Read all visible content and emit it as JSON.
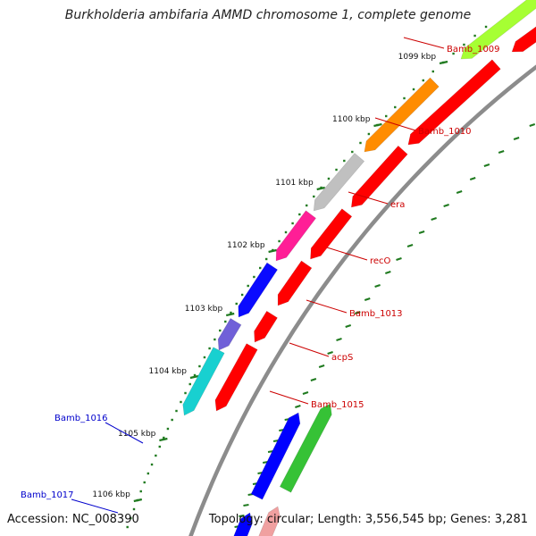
{
  "title": "Burkholderia ambifaria AMMD chromosome 1, complete genome",
  "footer": {
    "accession": "Accession: NC_008390",
    "topology": "Topology: circular; Length: 3,556,545 bp; Genes: 3,281"
  },
  "ticks": [
    "1099 kbp",
    "1100 kbp",
    "1101 kbp",
    "1102 kbp",
    "1103 kbp",
    "1104 kbp",
    "1105 kbp",
    "1106 kbp"
  ],
  "colors": {
    "backbone": "#8c8c8c",
    "tick": "#1f7a1f",
    "label_forward": "#cc0000",
    "label_reverse": "#0000cc",
    "cds": "#ff0000"
  },
  "genes": [
    {
      "name": "Bamb_1009",
      "color": "#a6ff33",
      "strand": "forward",
      "label": true
    },
    {
      "name": "Bamb_1010",
      "color": "#ff8c00",
      "strand": "forward",
      "label": true
    },
    {
      "name": "era",
      "color": "#c0c0c0",
      "strand": "forward",
      "label": true
    },
    {
      "name": "recO",
      "color": "#ff1e96",
      "strand": "forward",
      "label": true
    },
    {
      "name": "Bamb_1013",
      "color": "#0a0aff",
      "strand": "forward",
      "label": true
    },
    {
      "name": "acpS",
      "color": "#7060d8",
      "strand": "forward",
      "label": true
    },
    {
      "name": "Bamb_1015",
      "color": "#18d0d0",
      "strand": "forward",
      "label": true
    },
    {
      "name": "Bamb_1016",
      "color": "#36c236",
      "strand": "reverse",
      "label": true
    },
    {
      "name": "Bamb_1016 blue",
      "color": "#0000ff",
      "strand": "reverse",
      "label": false
    },
    {
      "name": "Bamb_1017",
      "color": "#f0a0a0",
      "strand": "reverse",
      "label": true
    },
    {
      "name": "Bamb_1017 blue",
      "color": "#0000ff",
      "strand": "reverse",
      "label": false
    }
  ]
}
